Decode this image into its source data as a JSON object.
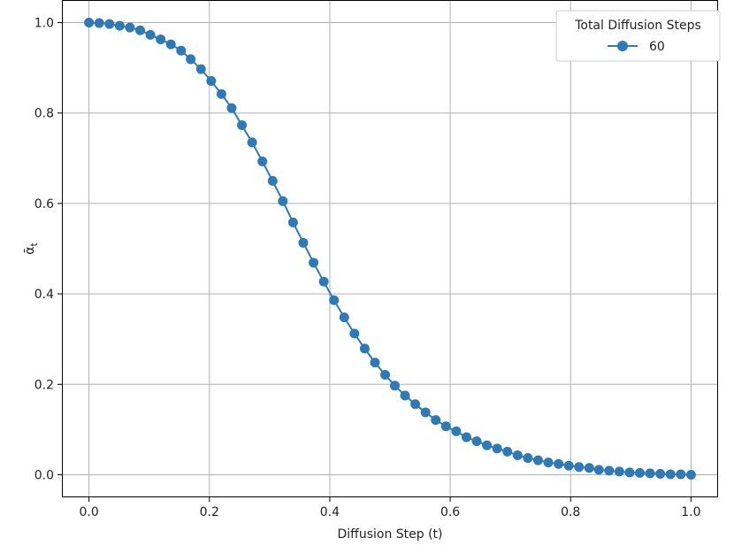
{
  "chart_data": {
    "type": "line",
    "title": "",
    "xlabel": "Diffusion Step (t)",
    "ylabel": "ᾱ",
    "ylabel_subscript": "t",
    "xlim": [
      -0.045,
      1.045
    ],
    "ylim": [
      -0.05,
      1.05
    ],
    "x_ticks": [
      "0.0",
      "0.2",
      "0.4",
      "0.6",
      "0.8",
      "1.0"
    ],
    "y_ticks": [
      "0.0",
      "0.2",
      "0.4",
      "0.6",
      "0.8",
      "1.0"
    ],
    "grid": true,
    "legend": {
      "title": "Total Diffusion Steps",
      "position": "top-right"
    },
    "series": [
      {
        "name": "60",
        "color": "#2e7ab6",
        "marker": "circle",
        "x": [
          0.0,
          0.017,
          0.034,
          0.051,
          0.068,
          0.085,
          0.102,
          0.119,
          0.136,
          0.153,
          0.169,
          0.186,
          0.203,
          0.22,
          0.237,
          0.254,
          0.271,
          0.288,
          0.305,
          0.322,
          0.339,
          0.356,
          0.373,
          0.39,
          0.407,
          0.424,
          0.441,
          0.458,
          0.475,
          0.492,
          0.508,
          0.525,
          0.542,
          0.559,
          0.576,
          0.593,
          0.61,
          0.627,
          0.644,
          0.661,
          0.678,
          0.695,
          0.712,
          0.729,
          0.746,
          0.763,
          0.78,
          0.797,
          0.814,
          0.831,
          0.847,
          0.864,
          0.881,
          0.898,
          0.915,
          0.932,
          0.949,
          0.966,
          0.983,
          1.0
        ],
        "values": [
          1.0,
          0.999,
          0.997,
          0.993,
          0.989,
          0.983,
          0.973,
          0.963,
          0.952,
          0.938,
          0.919,
          0.897,
          0.871,
          0.842,
          0.811,
          0.773,
          0.735,
          0.693,
          0.65,
          0.605,
          0.558,
          0.513,
          0.469,
          0.427,
          0.386,
          0.348,
          0.312,
          0.279,
          0.248,
          0.221,
          0.197,
          0.175,
          0.156,
          0.138,
          0.121,
          0.107,
          0.096,
          0.083,
          0.074,
          0.065,
          0.058,
          0.051,
          0.043,
          0.037,
          0.032,
          0.027,
          0.024,
          0.02,
          0.017,
          0.015,
          0.011,
          0.009,
          0.007,
          0.005,
          0.004,
          0.003,
          0.002,
          0.001,
          0.001,
          0.0
        ]
      }
    ]
  }
}
